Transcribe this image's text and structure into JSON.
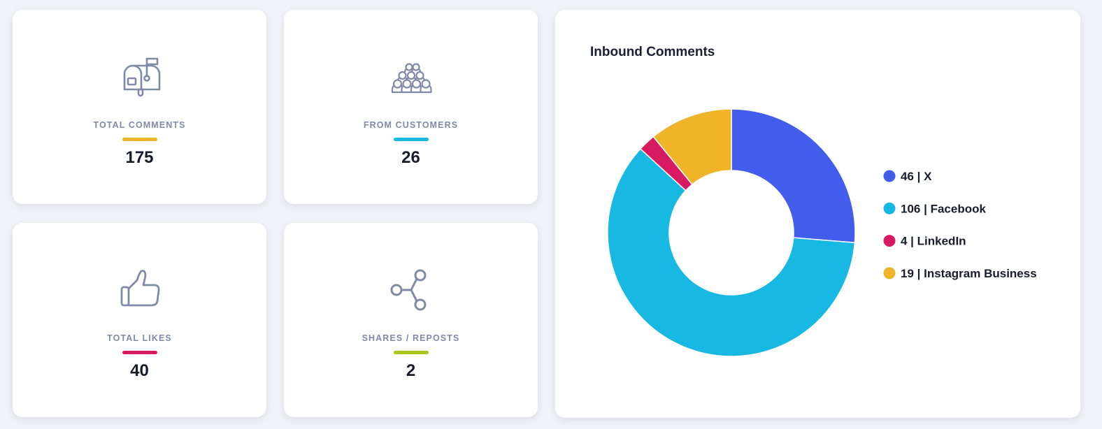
{
  "stats": [
    {
      "label": "TOTAL COMMENTS",
      "value": "175",
      "accent": "#f0b429",
      "icon": "mailbox-icon"
    },
    {
      "label": "FROM CUSTOMERS",
      "value": "26",
      "accent": "#17b8e2",
      "icon": "crowd-icon"
    },
    {
      "label": "TOTAL LIKES",
      "value": "40",
      "accent": "#d81b60",
      "icon": "thumbs-up-icon"
    },
    {
      "label": "SHARES / REPOSTS",
      "value": "2",
      "accent": "#a8c81a",
      "icon": "share-icon"
    }
  ],
  "chart_data": {
    "type": "pie",
    "title": "Inbound Comments",
    "donut": true,
    "legend": "right",
    "slices": [
      {
        "label": "46 | X",
        "value": 46,
        "color": "#425cec"
      },
      {
        "label": "106 | Facebook",
        "value": 106,
        "color": "#17b8e2"
      },
      {
        "label": "4 | LinkedIn",
        "value": 4,
        "color": "#d81b60"
      },
      {
        "label": "19 | Instagram Business",
        "value": 19,
        "color": "#f0b429"
      }
    ]
  }
}
